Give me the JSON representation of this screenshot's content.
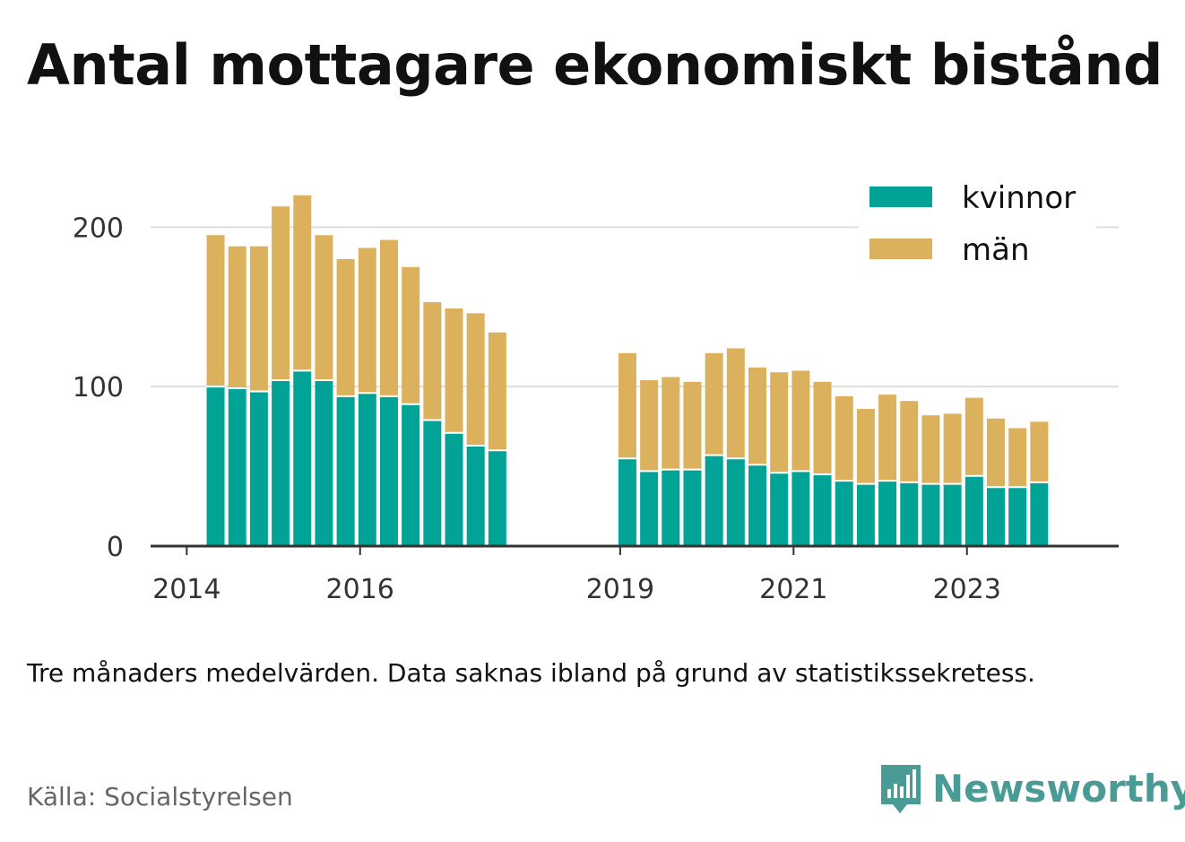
{
  "title": "Antal mottagare ekonomiskt bistånd",
  "note": "Tre månaders medelvärden. Data saknas ibland på grund av statistikssekretess.",
  "source": "Källa: Socialstyrelsen",
  "brand": {
    "name": "Newsworthy",
    "color": "#4a9a95",
    "icon": "bar-chart-speech-bubble-icon"
  },
  "colors": {
    "kvinnor": "#00a396",
    "man": "#dcb15d",
    "grid": "#dddddd",
    "axis": "#333333",
    "tick_text": "#333333"
  },
  "chart_data": {
    "type": "bar",
    "stacked": true,
    "title": "Antal mottagare ekonomiskt bistånd",
    "legend_position": "top-right",
    "grid": true,
    "ylim": [
      0,
      230
    ],
    "yticks": [
      0,
      100,
      200
    ],
    "xlim": [
      "2013-08",
      "2024-10"
    ],
    "xticks": [
      "2014",
      "2016",
      "2019",
      "2021",
      "2023"
    ],
    "x": [
      "2014-05",
      "2014-08",
      "2014-11",
      "2015-02",
      "2015-05",
      "2015-08",
      "2015-11",
      "2016-02",
      "2016-05",
      "2016-08",
      "2016-11",
      "2017-02",
      "2017-05",
      "2017-08",
      "2019-02",
      "2019-05",
      "2019-08",
      "2019-11",
      "2020-02",
      "2020-05",
      "2020-08",
      "2020-11",
      "2021-02",
      "2021-05",
      "2021-08",
      "2021-11",
      "2022-02",
      "2022-05",
      "2022-08",
      "2022-11",
      "2023-02",
      "2023-05",
      "2023-08",
      "2023-11"
    ],
    "series": [
      {
        "name": "kvinnor",
        "color": "#00a396",
        "values": [
          100,
          99,
          97,
          104,
          110,
          104,
          94,
          96,
          94,
          89,
          79,
          71,
          63,
          60,
          55,
          47,
          48,
          48,
          57,
          55,
          51,
          46,
          47,
          45,
          41,
          39,
          41,
          40,
          39,
          39,
          44,
          37,
          37,
          40
        ]
      },
      {
        "name": "män",
        "color": "#dcb15d",
        "values": [
          95,
          89,
          91,
          109,
          110,
          91,
          86,
          91,
          98,
          86,
          74,
          78,
          83,
          74,
          66,
          57,
          58,
          55,
          64,
          69,
          61,
          63,
          63,
          58,
          53,
          47,
          54,
          51,
          43,
          44,
          49,
          43,
          37,
          38
        ]
      }
    ]
  }
}
